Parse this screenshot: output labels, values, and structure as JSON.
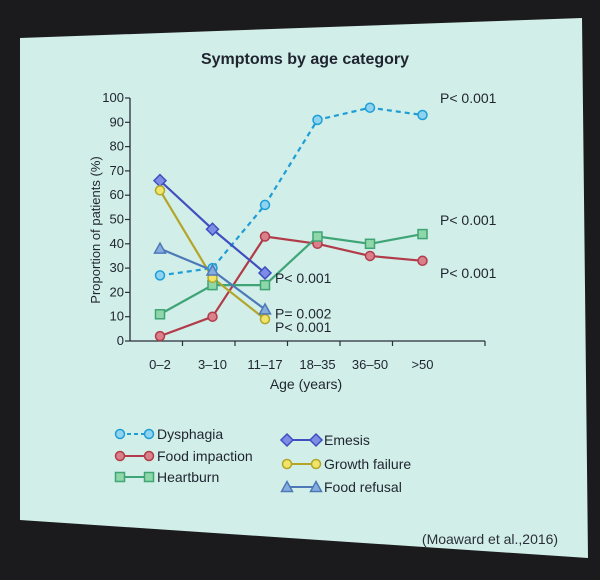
{
  "chart_data": {
    "type": "line",
    "title": "Symptoms by age category",
    "xlabel": "Age (years)",
    "ylabel": "Proportion of patients (%)",
    "ylim": [
      0,
      100
    ],
    "yticks": [
      0,
      10,
      20,
      30,
      40,
      50,
      60,
      70,
      80,
      90,
      100
    ],
    "categories": [
      "0–2",
      "3–10",
      "11–17",
      "18–35",
      "36–50",
      ">50"
    ],
    "grid": false,
    "legend_position": "bottom",
    "series": [
      {
        "name": "Dysphagia",
        "values": [
          27,
          30,
          56,
          91,
          96,
          93
        ],
        "color": "#1f9ed6",
        "marker": "circle",
        "dashed": true,
        "fill": "#8fd3f0"
      },
      {
        "name": "Food impaction",
        "values": [
          2,
          10,
          43,
          40,
          35,
          33
        ],
        "color": "#b23b49",
        "marker": "circle",
        "dashed": false,
        "fill": "#d9808a"
      },
      {
        "name": "Heartburn",
        "values": [
          11,
          23,
          23,
          43,
          40,
          44
        ],
        "color": "#3fa476",
        "marker": "square",
        "dashed": false,
        "fill": "#8fd6a8"
      },
      {
        "name": "Emesis",
        "values": [
          66,
          46,
          28,
          null,
          null,
          null
        ],
        "color": "#3f4fbf",
        "marker": "diamond",
        "dashed": false,
        "fill": "#7d8de6"
      },
      {
        "name": "Growth failure",
        "values": [
          62,
          26,
          9,
          null,
          null,
          null
        ],
        "color": "#b3a528",
        "marker": "circle",
        "dashed": false,
        "fill": "#f0e46a"
      },
      {
        "name": "Food refusal",
        "values": [
          38,
          29,
          13,
          null,
          null,
          null
        ],
        "color": "#4e79b8",
        "marker": "triangle",
        "dashed": false,
        "fill": "#86aedd"
      }
    ],
    "annotations": [
      {
        "text": "P< 0.001",
        "series": "Dysphagia"
      },
      {
        "text": "P< 0.001",
        "series": "Heartburn"
      },
      {
        "text": "P< 0.001",
        "series": "Food impaction"
      },
      {
        "text": "P< 0.001",
        "series": "Emesis"
      },
      {
        "text": "P= 0.002",
        "series": "Food refusal"
      },
      {
        "text": "P< 0.001",
        "series": "Growth failure"
      }
    ],
    "citation": "(Moaward et al.,2016)"
  },
  "colors": {
    "slide_bg": "#d1eee8",
    "frame": "#1b1b1d",
    "text": "#1f2430",
    "axis": "#2a2f3a"
  }
}
